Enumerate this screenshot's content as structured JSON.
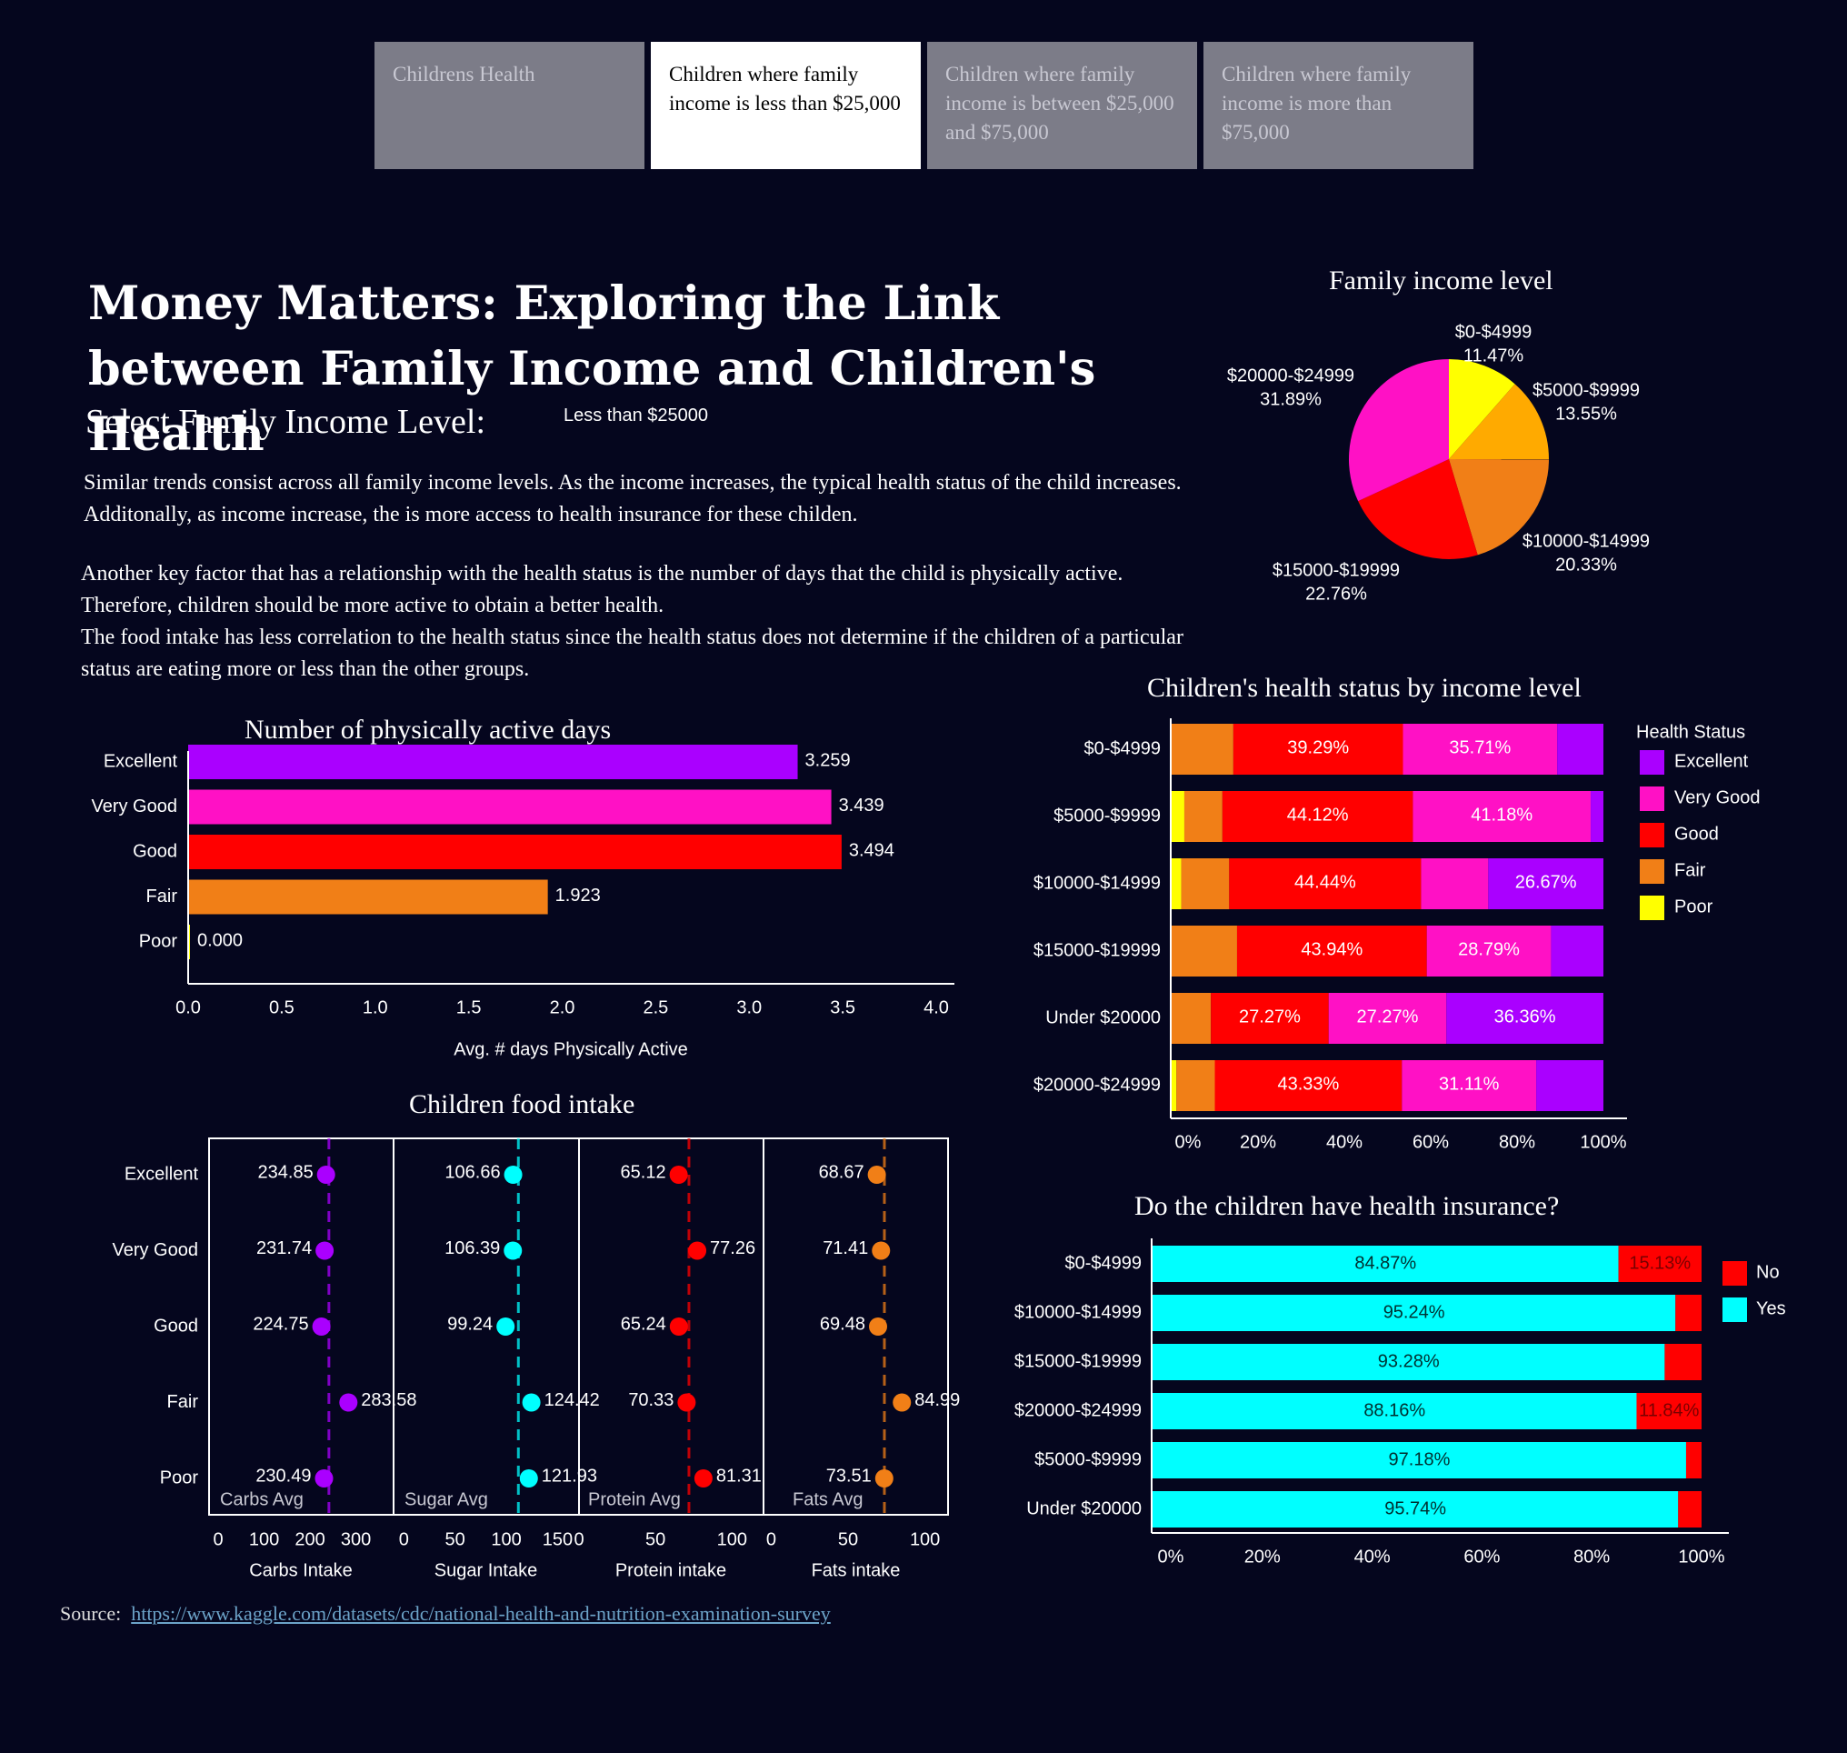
{
  "tabs": [
    {
      "label": "Childrens Health",
      "active": false
    },
    {
      "label": "Children where family income is less than $25,000",
      "active": true
    },
    {
      "label": "Children where family income is between $25,000 and $75,000",
      "active": false
    },
    {
      "label": "Children where family income is more than $75,000",
      "active": false
    }
  ],
  "header": {
    "title": "Money Matters: Exploring the Link between Family Income and Children's Health",
    "select_label": "Select Family Income Level:",
    "select_value": "Less than $25000"
  },
  "paragraphs": {
    "p1": "Similar trends consist across all family income levels. As the income increases, the typical health status of the child increases. Additonally, as income increase, the is more access to health insurance for these childen.",
    "p2": "Another key factor that has a relationship with the health status is the number of days that the child is physically active. Therefore, children should be more active to obtain a better health.",
    "p3": "The food intake has less correlation to the health status since the health status does not determine if the children of a particular status are eating more or less than the other groups."
  },
  "source": {
    "label": "Source:",
    "link": "https://www.kaggle.com/datasets/cdc/national-health-and-nutrition-examination-survey"
  },
  "colors": {
    "Excellent": "#aa00ff",
    "Very Good": "#ff11c5",
    "Good": "#ff0000",
    "Fair": "#f17f17",
    "Poor": "#ffff00",
    "Yes": "#00ffff",
    "No": "#ff0000",
    "carbs": "#aa00ff",
    "sugar": "#00ffff",
    "protein": "#ff0000",
    "fats": "#f17f17",
    "pie": [
      "#ffff00",
      "#ffaa00",
      "#f17f17",
      "#ff0000",
      "#ff11c5"
    ]
  },
  "chart_data": [
    {
      "id": "pie",
      "type": "pie",
      "title": "Family income level",
      "labels": [
        "$0-$4999",
        "$5000-$9999",
        "$10000-$14999",
        "$15000-$19999",
        "$20000-$24999"
      ],
      "values": [
        11.47,
        13.55,
        20.33,
        22.76,
        31.89
      ],
      "value_labels": [
        "11.47%",
        "13.55%",
        "20.33%",
        "22.76%",
        "31.89%"
      ]
    },
    {
      "id": "active",
      "type": "bar",
      "orientation": "horizontal",
      "title": "Number of physically active days",
      "xlabel": "Avg. # days Physically Active",
      "categories": [
        "Excellent",
        "Very Good",
        "Good",
        "Fair",
        "Poor"
      ],
      "values": [
        3.259,
        3.439,
        3.494,
        1.923,
        0.0
      ],
      "value_labels": [
        "3.259",
        "3.439",
        "3.494",
        "1.923",
        "0.000"
      ],
      "xlim": [
        0,
        4
      ],
      "xticks": [
        "0.0",
        "0.5",
        "1.0",
        "1.5",
        "2.0",
        "2.5",
        "3.0",
        "3.5",
        "4.0"
      ]
    },
    {
      "id": "health",
      "type": "bar",
      "orientation": "horizontal",
      "stacked": true,
      "title": "Children's health status by income level",
      "legend_title": "Health Status",
      "legend": [
        "Excellent",
        "Very Good",
        "Good",
        "Fair",
        "Poor"
      ],
      "categories": [
        "$0-$4999",
        "$5000-$9999",
        "$10000-$14999",
        "$15000-$19999",
        "Under $20000",
        "$20000-$24999"
      ],
      "stack_order": [
        "Poor",
        "Fair",
        "Good",
        "Very Good",
        "Excellent"
      ],
      "series": [
        {
          "name": "Poor",
          "values": [
            0,
            2.94,
            2.22,
            0,
            0,
            1.11
          ]
        },
        {
          "name": "Fair",
          "values": [
            14.29,
            8.82,
            11.11,
            15.15,
            9.09,
            8.89
          ]
        },
        {
          "name": "Good",
          "values": [
            39.29,
            44.12,
            44.44,
            43.94,
            27.27,
            43.33
          ]
        },
        {
          "name": "Very Good",
          "values": [
            35.71,
            41.18,
            15.56,
            28.79,
            27.27,
            31.11
          ]
        },
        {
          "name": "Excellent",
          "values": [
            10.71,
            2.94,
            26.67,
            12.12,
            36.36,
            15.56
          ]
        }
      ],
      "labels": {
        "Good": [
          "39.29%",
          "44.12%",
          "44.44%",
          "43.94%",
          "27.27%",
          "43.33%"
        ],
        "Very Good": [
          "35.71%",
          "41.18%",
          "",
          "28.79%",
          "27.27%",
          "31.11%"
        ],
        "Excellent": [
          "",
          "",
          "26.67%",
          "",
          "36.36%",
          ""
        ]
      },
      "xticks": [
        "0%",
        "20%",
        "40%",
        "60%",
        "80%",
        "100%"
      ]
    },
    {
      "id": "food",
      "type": "scatter",
      "title": "Children food intake",
      "categories": [
        "Excellent",
        "Very Good",
        "Good",
        "Fair",
        "Poor"
      ],
      "panels": [
        {
          "key": "carbs",
          "xlabel": "Carbs Intake",
          "avg_label": "Carbs Avg",
          "values": [
            234.85,
            231.74,
            224.75,
            283.58,
            230.49
          ],
          "value_labels": [
            "234.85",
            "231.74",
            "224.75",
            "283.58",
            "230.49"
          ],
          "avg": 241.08,
          "xlim": [
            -20,
            380
          ],
          "ticks": [
            0,
            100,
            200,
            300
          ]
        },
        {
          "key": "sugar",
          "xlabel": "Sugar Intake",
          "avg_label": "Sugar Avg",
          "values": [
            106.66,
            106.39,
            99.24,
            124.42,
            121.93
          ],
          "value_labels": [
            "106.66",
            "106.39",
            "99.24",
            "124.42",
            "121.93"
          ],
          "avg": 111.73,
          "xlim": [
            -10,
            170
          ],
          "ticks": [
            0,
            50,
            100,
            150
          ]
        },
        {
          "key": "protein",
          "xlabel": "Protein intake",
          "avg_label": "Protein Avg",
          "values": [
            65.12,
            77.26,
            65.24,
            70.33,
            81.31
          ],
          "value_labels": [
            "65.12",
            "77.26",
            "65.24",
            "70.33",
            "81.31"
          ],
          "avg": 71.85,
          "xlim": [
            0,
            120
          ],
          "ticks": [
            0,
            50,
            100
          ]
        },
        {
          "key": "fats",
          "xlabel": "Fats intake",
          "avg_label": "Fats Avg",
          "values": [
            68.67,
            71.41,
            69.48,
            84.99,
            73.51
          ],
          "value_labels": [
            "68.67",
            "71.41",
            "69.48",
            "84.99",
            "73.51"
          ],
          "avg": 73.61,
          "xlim": [
            -5,
            115
          ],
          "ticks": [
            0,
            50,
            100
          ]
        }
      ]
    },
    {
      "id": "insurance",
      "type": "bar",
      "orientation": "horizontal",
      "stacked": true,
      "title": "Do the children have health insurance?",
      "legend": [
        "No",
        "Yes"
      ],
      "categories": [
        "$0-$4999",
        "$10000-$14999",
        "$15000-$19999",
        "$20000-$24999",
        "$5000-$9999",
        "Under $20000"
      ],
      "series": [
        {
          "name": "Yes",
          "values": [
            84.87,
            95.24,
            93.28,
            88.16,
            97.18,
            95.74
          ]
        },
        {
          "name": "No",
          "values": [
            15.13,
            4.76,
            6.72,
            11.84,
            2.82,
            4.26
          ]
        }
      ],
      "labels": {
        "Yes": [
          "84.87%",
          "95.24%",
          "93.28%",
          "88.16%",
          "97.18%",
          "95.74%"
        ],
        "No": [
          "15.13%",
          "",
          "",
          "11.84%",
          "",
          ""
        ]
      },
      "xticks": [
        "0%",
        "20%",
        "40%",
        "60%",
        "80%",
        "100%"
      ]
    }
  ]
}
